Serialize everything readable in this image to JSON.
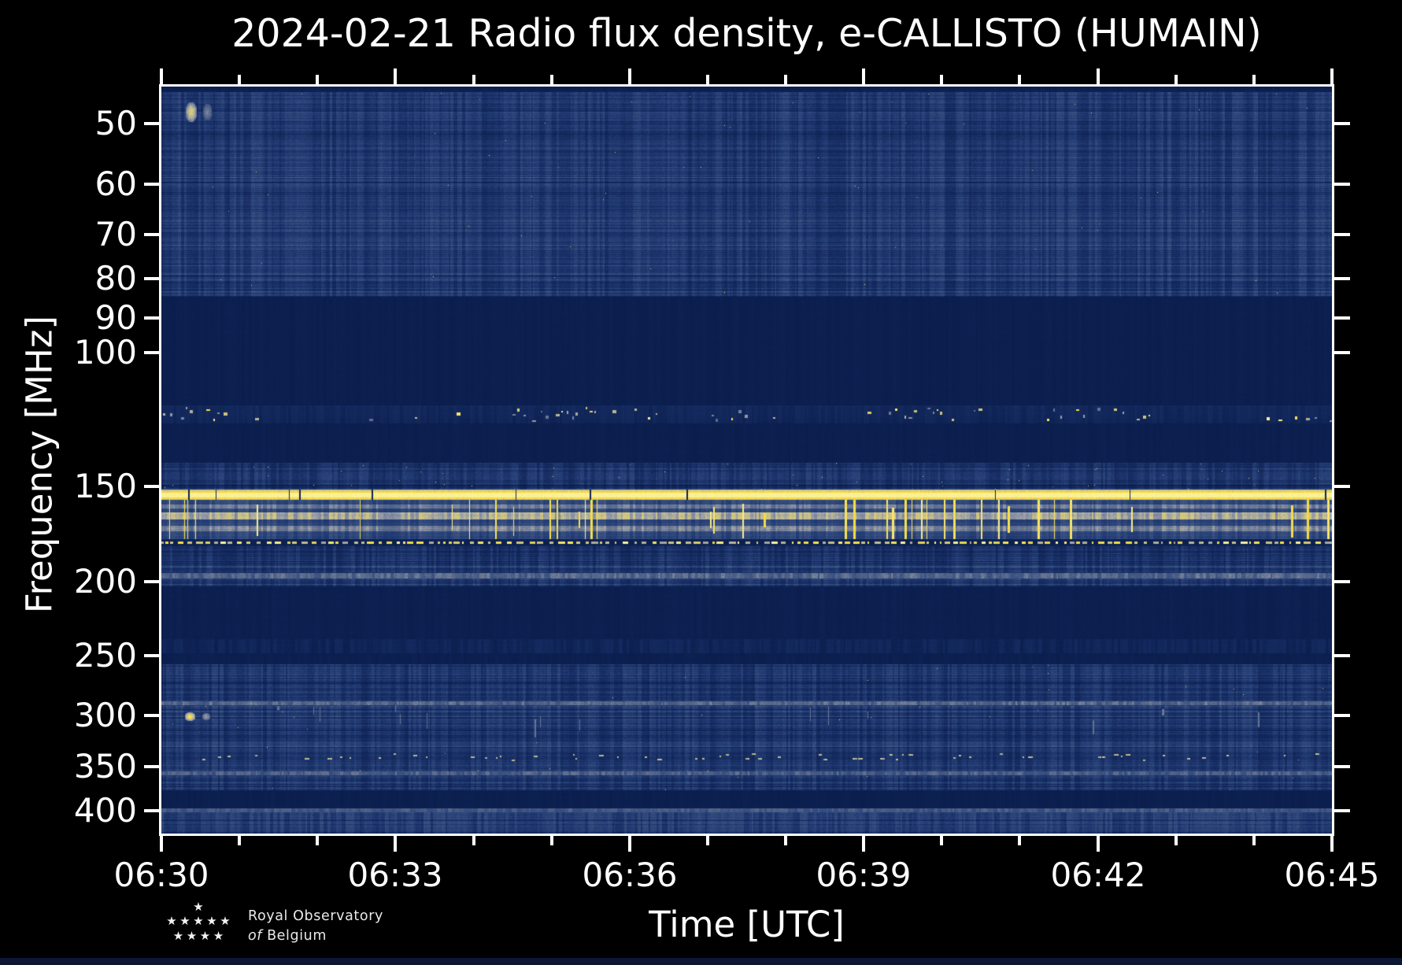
{
  "figure": {
    "background": "#000000",
    "footer_strip_color": "#0b1733"
  },
  "chart_data": {
    "type": "heatmap",
    "title": "2024-02-21 Radio flux density, e-CALLISTO (HUMAIN)",
    "xlabel": "Time [UTC]",
    "ylabel": "Frequency [MHz]",
    "x_axis": {
      "start_utc": "06:30",
      "end_utc": "06:45",
      "duration_min": 15,
      "major_tick_every_min": 3,
      "minor_tick_every_min": 1,
      "major_labels": [
        "06:30",
        "06:33",
        "06:36",
        "06:39",
        "06:42",
        "06:45"
      ]
    },
    "y_axis": {
      "scale": "log",
      "inverted": true,
      "f_top_mhz": 44.7,
      "f_bottom_mhz": 428.5,
      "ticks_mhz": [
        50,
        60,
        70,
        80,
        90,
        100,
        150,
        200,
        250,
        300,
        350,
        400
      ]
    },
    "colormap": [
      [
        0.0,
        10,
        29,
        76
      ],
      [
        0.2,
        21,
        43,
        96
      ],
      [
        0.35,
        36,
        62,
        118
      ],
      [
        0.5,
        62,
        84,
        130
      ],
      [
        0.65,
        105,
        117,
        145
      ],
      [
        0.75,
        154,
        160,
        172
      ],
      [
        0.83,
        207,
        196,
        133
      ],
      [
        0.91,
        246,
        221,
        60
      ],
      [
        1.0,
        253,
        244,
        176
      ]
    ],
    "bands": [
      {
        "name": "top-edge",
        "type": "quiet",
        "f1": 44.7,
        "f2": 45.5,
        "level": 0.05
      },
      {
        "name": "vhf-low-noise",
        "type": "noise",
        "f1": 45.5,
        "f2": 84.5,
        "level": 0.3,
        "row_var": 0.085,
        "col_var": 0.09,
        "speck_prob": 0.00015
      },
      {
        "name": "quiet-85-117",
        "type": "quiet",
        "f1": 84.5,
        "f2": 117.3,
        "level": 0.035
      },
      {
        "name": "airband-carriers",
        "type": "carriers",
        "f1": 117.3,
        "f2": 124.0,
        "level": 0.16,
        "speck_density": 0.15
      },
      {
        "name": "quiet-124-140",
        "type": "quiet",
        "f1": 124.0,
        "f2": 139.5,
        "level": 0.035
      },
      {
        "name": "vhf-mid-noise",
        "type": "noise",
        "f1": 139.5,
        "f2": 151.3,
        "level": 0.27,
        "row_var": 0.075,
        "col_var": 0.09,
        "speck_prob": 0.0012
      },
      {
        "name": "broadcast-154",
        "type": "solid",
        "f1": 151.3,
        "f2": 156.2,
        "level": 0.9,
        "core_level": 0.98,
        "gap_prob": 0.006
      },
      {
        "name": "rfi-streaks-165",
        "type": "streaks",
        "f1": 156.2,
        "f2": 175.7,
        "level": 0.4,
        "streak_prob": 0.08,
        "light_rows": [
          {
            "f1": 158.3,
            "f2": 160.2,
            "level": 0.66
          },
          {
            "f1": 162.1,
            "f2": 165.6,
            "level": 0.78
          },
          {
            "f1": 168.8,
            "f2": 171.6,
            "level": 0.68
          }
        ]
      },
      {
        "name": "carrier-177",
        "type": "dotted",
        "f1": 176.2,
        "f2": 179.2,
        "level": 0.05,
        "dash_level": 0.88
      },
      {
        "name": "vhf-high-noise",
        "type": "noise",
        "f1": 179.4,
        "f2": 203.0,
        "level": 0.27,
        "row_var": 0.075,
        "col_var": 0.09,
        "light_lines": [
          {
            "f1": 195.0,
            "f2": 198.0,
            "level": 0.58
          }
        ]
      },
      {
        "name": "quiet-203-238",
        "type": "quiet",
        "f1": 203.0,
        "f2": 238.0,
        "level": 0.04
      },
      {
        "name": "faint-243",
        "type": "faint",
        "f1": 238.0,
        "f2": 248.6,
        "level": 0.12
      },
      {
        "name": "quiet-249-256",
        "type": "quiet",
        "f1": 248.6,
        "f2": 256.5,
        "level": 0.04
      },
      {
        "name": "uhf-noise",
        "type": "noise",
        "f1": 256.5,
        "f2": 376.0,
        "level": 0.285,
        "row_var": 0.09,
        "col_var": 0.09,
        "speck_prob": 0.0002,
        "light_lines": [
          {
            "f1": 287.0,
            "f2": 290.5,
            "level": 0.58
          },
          {
            "f1": 355.0,
            "f2": 359.0,
            "level": 0.54
          }
        ],
        "speck_rows": [
          {
            "f1": 336.0,
            "f2": 345.0,
            "level": 0.8,
            "density": 0.05
          }
        ],
        "white_streaks": {
          "f1": 290.5,
          "f2": 328.0,
          "prob": 0.012,
          "level": 0.64
        }
      },
      {
        "name": "quiet-376-397",
        "type": "quiet",
        "f1": 376.0,
        "f2": 397.5,
        "level": 0.035
      },
      {
        "name": "line-399",
        "type": "faint",
        "f1": 397.5,
        "f2": 402.0,
        "level": 0.5
      },
      {
        "name": "uhf-top-noise",
        "type": "noise",
        "f1": 402.0,
        "f2": 428.5,
        "level": 0.31,
        "row_var": 0.08,
        "col_var": 0.09
      }
    ],
    "events": [
      {
        "name": "burst-48",
        "t_min": 0.3,
        "dur_min": 0.15,
        "f1": 46.8,
        "f2": 49.8,
        "level": 0.86
      },
      {
        "name": "burst-48b",
        "t_min": 0.52,
        "dur_min": 0.12,
        "f1": 47.0,
        "f2": 49.5,
        "level": 0.66
      },
      {
        "name": "burst-302",
        "t_min": 0.29,
        "dur_min": 0.14,
        "f1": 296.0,
        "f2": 305.0,
        "level": 0.92
      },
      {
        "name": "burst-302b",
        "t_min": 0.51,
        "dur_min": 0.11,
        "f1": 297.0,
        "f2": 304.0,
        "level": 0.74
      }
    ]
  },
  "logo": {
    "line1": "Royal Observatory",
    "line2_italic": "of",
    "line2_rest": "Belgium",
    "star_rows": [
      1,
      5,
      4
    ]
  }
}
